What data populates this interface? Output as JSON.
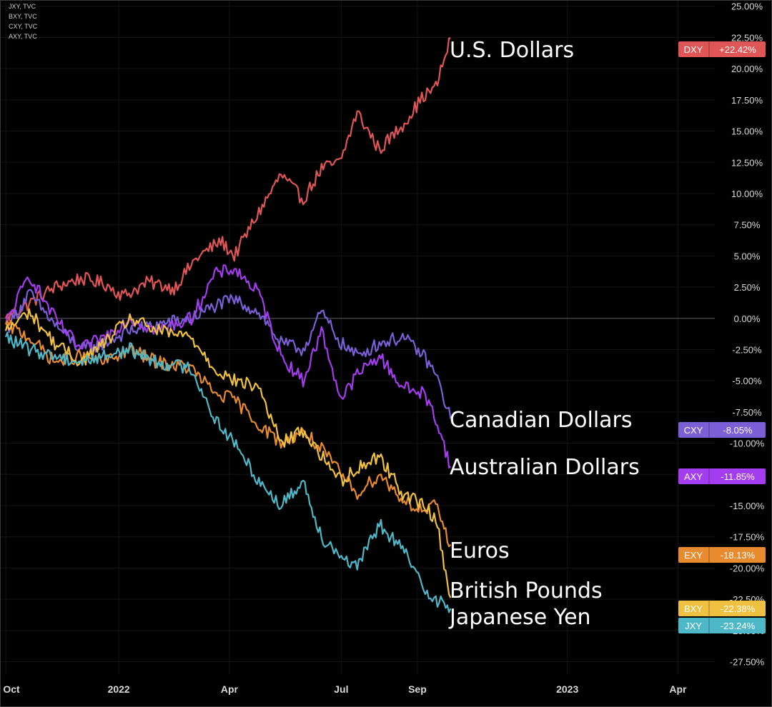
{
  "sources": [
    "JXY, TVC",
    "BXY, TVC",
    "CXY, TVC",
    "AXY, TVC"
  ],
  "chart_data": {
    "type": "line",
    "title": "",
    "xlabel": "",
    "ylabel": "",
    "x_ticks": [
      "Oct",
      "2022",
      "Apr",
      "Jul",
      "Sep",
      "2023",
      "Apr"
    ],
    "x_range": [
      "2021-10-01",
      "2023-05-01"
    ],
    "y_ticks": [
      "25.00%",
      "22.50%",
      "20.00%",
      "17.50%",
      "15.00%",
      "12.50%",
      "10.00%",
      "7.50%",
      "5.00%",
      "2.50%",
      "0.00%",
      "-2.50%",
      "-5.00%",
      "-7.50%",
      "-10.00%",
      "-12.50%",
      "-15.00%",
      "-17.50%",
      "-20.00%",
      "-22.50%",
      "-25.00%",
      "-27.50%"
    ],
    "ylim": [
      -28.5,
      25.5
    ],
    "y_unit": "%",
    "grid": true,
    "series": [
      {
        "name": "U.S. Dollars",
        "symbol": "DXY",
        "value_label": "+22.42%",
        "color": "#e05555",
        "points": [
          [
            "2021-10-01",
            0
          ],
          [
            "2021-10-20",
            1.2
          ],
          [
            "2021-11-10",
            2.5
          ],
          [
            "2021-12-01",
            3.2
          ],
          [
            "2021-12-20",
            2.8
          ],
          [
            "2022-01-05",
            1.8
          ],
          [
            "2022-01-25",
            2.9
          ],
          [
            "2022-02-15",
            2.4
          ],
          [
            "2022-03-05",
            4.8
          ],
          [
            "2022-03-25",
            6.2
          ],
          [
            "2022-04-05",
            5.0
          ],
          [
            "2022-04-25",
            8.5
          ],
          [
            "2022-05-13",
            11.5
          ],
          [
            "2022-05-31",
            9.5
          ],
          [
            "2022-06-15",
            12.0
          ],
          [
            "2022-06-30",
            12.5
          ],
          [
            "2022-07-14",
            16.5
          ],
          [
            "2022-08-01",
            13.5
          ],
          [
            "2022-08-20",
            15.5
          ],
          [
            "2022-09-06",
            17.8
          ],
          [
            "2022-09-16",
            18.5
          ],
          [
            "2022-09-28",
            22.42
          ]
        ]
      },
      {
        "name": "Canadian Dollars",
        "symbol": "CXY",
        "value_label": "-8.05%",
        "color": "#7b5fd6",
        "points": [
          [
            "2021-10-01",
            -1.0
          ],
          [
            "2021-10-20",
            2.0
          ],
          [
            "2021-11-10",
            -0.5
          ],
          [
            "2021-12-01",
            -2.5
          ],
          [
            "2021-12-20",
            -2.0
          ],
          [
            "2022-01-10",
            -1.0
          ],
          [
            "2022-02-01",
            -0.5
          ],
          [
            "2022-03-01",
            0.0
          ],
          [
            "2022-03-20",
            1.0
          ],
          [
            "2022-04-05",
            1.5
          ],
          [
            "2022-04-25",
            0.5
          ],
          [
            "2022-05-13",
            -2.0
          ],
          [
            "2022-05-31",
            -2.5
          ],
          [
            "2022-06-15",
            0.5
          ],
          [
            "2022-07-01",
            -2.0
          ],
          [
            "2022-07-14",
            -3.0
          ],
          [
            "2022-08-01",
            -2.0
          ],
          [
            "2022-08-20",
            -1.5
          ],
          [
            "2022-09-06",
            -3.0
          ],
          [
            "2022-09-16",
            -4.5
          ],
          [
            "2022-09-28",
            -8.05
          ]
        ]
      },
      {
        "name": "Australian Dollars",
        "symbol": "AXY",
        "value_label": "-11.85%",
        "color": "#a43df0",
        "points": [
          [
            "2021-10-01",
            -0.5
          ],
          [
            "2021-10-20",
            3.5
          ],
          [
            "2021-11-10",
            0.0
          ],
          [
            "2021-12-01",
            -2.5
          ],
          [
            "2021-12-20",
            -1.5
          ],
          [
            "2022-01-10",
            0.0
          ],
          [
            "2022-02-01",
            -1.0
          ],
          [
            "2022-03-01",
            0.0
          ],
          [
            "2022-03-20",
            3.5
          ],
          [
            "2022-04-05",
            4.0
          ],
          [
            "2022-04-25",
            2.0
          ],
          [
            "2022-05-13",
            -3.0
          ],
          [
            "2022-05-31",
            -5.0
          ],
          [
            "2022-06-15",
            -1.0
          ],
          [
            "2022-07-01",
            -6.5
          ],
          [
            "2022-07-14",
            -4.5
          ],
          [
            "2022-08-01",
            -3.0
          ],
          [
            "2022-08-20",
            -5.5
          ],
          [
            "2022-09-06",
            -6.0
          ],
          [
            "2022-09-16",
            -8.0
          ],
          [
            "2022-09-28",
            -11.85
          ]
        ]
      },
      {
        "name": "Euros",
        "symbol": "EXY",
        "value_label": "-18.13%",
        "color": "#e88a2e",
        "points": [
          [
            "2021-10-01",
            -0.5
          ],
          [
            "2021-10-20",
            -1.5
          ],
          [
            "2021-11-10",
            -3.5
          ],
          [
            "2021-12-01",
            -3.0
          ],
          [
            "2021-12-20",
            -3.5
          ],
          [
            "2022-01-10",
            -2.5
          ],
          [
            "2022-02-01",
            -3.5
          ],
          [
            "2022-03-01",
            -4.0
          ],
          [
            "2022-03-20",
            -6.0
          ],
          [
            "2022-04-05",
            -6.5
          ],
          [
            "2022-04-25",
            -8.5
          ],
          [
            "2022-05-13",
            -10.0
          ],
          [
            "2022-05-31",
            -9.0
          ],
          [
            "2022-06-15",
            -10.5
          ],
          [
            "2022-07-01",
            -12.5
          ],
          [
            "2022-07-14",
            -14.0
          ],
          [
            "2022-08-01",
            -12.5
          ],
          [
            "2022-08-20",
            -14.5
          ],
          [
            "2022-09-06",
            -15.5
          ],
          [
            "2022-09-16",
            -15.0
          ],
          [
            "2022-09-28",
            -18.13
          ]
        ]
      },
      {
        "name": "British Pounds",
        "symbol": "BXY",
        "value_label": "-22.38%",
        "color": "#f0c040",
        "points": [
          [
            "2021-10-01",
            -1.0
          ],
          [
            "2021-10-20",
            0.5
          ],
          [
            "2021-11-10",
            -2.0
          ],
          [
            "2021-12-01",
            -3.5
          ],
          [
            "2021-12-20",
            -2.0
          ],
          [
            "2022-01-10",
            0.0
          ],
          [
            "2022-02-01",
            -1.0
          ],
          [
            "2022-03-01",
            -1.5
          ],
          [
            "2022-03-20",
            -4.0
          ],
          [
            "2022-04-05",
            -5.0
          ],
          [
            "2022-04-25",
            -5.5
          ],
          [
            "2022-05-13",
            -10.0
          ],
          [
            "2022-05-31",
            -9.0
          ],
          [
            "2022-06-15",
            -11.0
          ],
          [
            "2022-07-01",
            -13.0
          ],
          [
            "2022-07-14",
            -12.0
          ],
          [
            "2022-08-01",
            -11.0
          ],
          [
            "2022-08-20",
            -14.0
          ],
          [
            "2022-09-06",
            -15.0
          ],
          [
            "2022-09-16",
            -16.0
          ],
          [
            "2022-09-28",
            -22.38
          ]
        ]
      },
      {
        "name": "Japanese Yen",
        "symbol": "JXY",
        "value_label": "-23.24%",
        "color": "#4fb8c8",
        "points": [
          [
            "2021-10-01",
            -1.5
          ],
          [
            "2021-10-20",
            -2.5
          ],
          [
            "2021-11-10",
            -3.0
          ],
          [
            "2021-12-01",
            -3.5
          ],
          [
            "2021-12-20",
            -3.0
          ],
          [
            "2022-01-10",
            -2.5
          ],
          [
            "2022-02-01",
            -3.5
          ],
          [
            "2022-03-01",
            -4.0
          ],
          [
            "2022-03-20",
            -8.0
          ],
          [
            "2022-04-05",
            -10.0
          ],
          [
            "2022-04-25",
            -13.0
          ],
          [
            "2022-05-13",
            -15.0
          ],
          [
            "2022-05-31",
            -13.0
          ],
          [
            "2022-06-15",
            -17.5
          ],
          [
            "2022-07-01",
            -19.0
          ],
          [
            "2022-07-14",
            -20.0
          ],
          [
            "2022-08-01",
            -16.5
          ],
          [
            "2022-08-20",
            -18.5
          ],
          [
            "2022-09-06",
            -21.5
          ],
          [
            "2022-09-16",
            -22.5
          ],
          [
            "2022-09-28",
            -23.24
          ]
        ]
      }
    ]
  }
}
